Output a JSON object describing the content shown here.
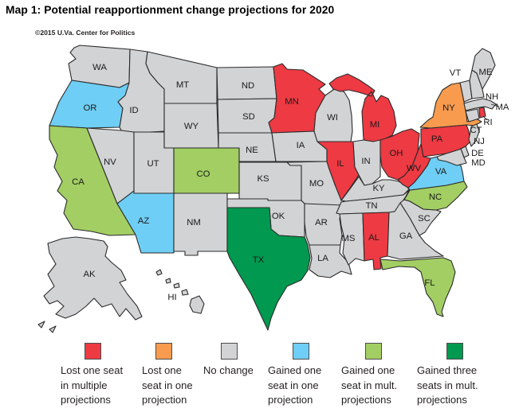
{
  "page": {
    "title": "Map 1: Potential reapportionment change projections for 2020",
    "copyright": "©2015 U.Va. Center for Politics"
  },
  "map": {
    "colors": {
      "lost_multiple": "#EE3A43",
      "lost_one": "#F89B4E",
      "no_change": "#D2D3D5",
      "gained_one_one": "#6FCEF5",
      "gained_one_mult": "#A2CE63",
      "gained_three_mult": "#00994F"
    },
    "border_color": "#2B2B2B",
    "label_color": "#1A1A1A",
    "states": [
      {
        "abbr": "WA",
        "category": "no_change"
      },
      {
        "abbr": "OR",
        "category": "gained_one_one"
      },
      {
        "abbr": "CA",
        "category": "gained_one_mult"
      },
      {
        "abbr": "ID",
        "category": "no_change"
      },
      {
        "abbr": "NV",
        "category": "no_change"
      },
      {
        "abbr": "UT",
        "category": "no_change"
      },
      {
        "abbr": "AZ",
        "category": "gained_one_one"
      },
      {
        "abbr": "MT",
        "category": "no_change"
      },
      {
        "abbr": "WY",
        "category": "no_change"
      },
      {
        "abbr": "CO",
        "category": "gained_one_mult"
      },
      {
        "abbr": "NM",
        "category": "no_change"
      },
      {
        "abbr": "ND",
        "category": "no_change"
      },
      {
        "abbr": "SD",
        "category": "no_change"
      },
      {
        "abbr": "NE",
        "category": "no_change"
      },
      {
        "abbr": "KS",
        "category": "no_change"
      },
      {
        "abbr": "OK",
        "category": "no_change"
      },
      {
        "abbr": "TX",
        "category": "gained_three_mult"
      },
      {
        "abbr": "MN",
        "category": "lost_multiple"
      },
      {
        "abbr": "IA",
        "category": "no_change"
      },
      {
        "abbr": "MO",
        "category": "no_change"
      },
      {
        "abbr": "AR",
        "category": "no_change"
      },
      {
        "abbr": "LA",
        "category": "no_change"
      },
      {
        "abbr": "WI",
        "category": "no_change"
      },
      {
        "abbr": "IL",
        "category": "lost_multiple"
      },
      {
        "abbr": "MI",
        "category": "lost_multiple"
      },
      {
        "abbr": "IN",
        "category": "no_change"
      },
      {
        "abbr": "OH",
        "category": "lost_multiple"
      },
      {
        "abbr": "KY",
        "category": "no_change"
      },
      {
        "abbr": "TN",
        "category": "no_change"
      },
      {
        "abbr": "MS",
        "category": "no_change"
      },
      {
        "abbr": "AL",
        "category": "lost_multiple"
      },
      {
        "abbr": "GA",
        "category": "no_change"
      },
      {
        "abbr": "SC",
        "category": "no_change"
      },
      {
        "abbr": "NC",
        "category": "gained_one_mult"
      },
      {
        "abbr": "FL",
        "category": "gained_one_mult"
      },
      {
        "abbr": "VA",
        "category": "gained_one_one"
      },
      {
        "abbr": "WV",
        "category": "lost_multiple"
      },
      {
        "abbr": "PA",
        "category": "lost_multiple"
      },
      {
        "abbr": "NY",
        "category": "lost_one"
      },
      {
        "abbr": "NJ",
        "category": "no_change"
      },
      {
        "abbr": "DE",
        "category": "no_change"
      },
      {
        "abbr": "MD",
        "category": "no_change"
      },
      {
        "abbr": "CT",
        "category": "no_change"
      },
      {
        "abbr": "RI",
        "category": "lost_multiple"
      },
      {
        "abbr": "MA",
        "category": "no_change"
      },
      {
        "abbr": "VT",
        "category": "no_change"
      },
      {
        "abbr": "NH",
        "category": "no_change"
      },
      {
        "abbr": "ME",
        "category": "no_change"
      },
      {
        "abbr": "AK",
        "category": "no_change"
      },
      {
        "abbr": "HI",
        "category": "no_change"
      }
    ]
  },
  "legend": {
    "items": [
      {
        "category": "lost_multiple",
        "lines": [
          "Lost one seat",
          "in multiple",
          "projections"
        ]
      },
      {
        "category": "lost_one",
        "lines": [
          "Lost one",
          "seat in one",
          "projection"
        ]
      },
      {
        "category": "no_change",
        "lines": [
          "No change"
        ]
      },
      {
        "category": "gained_one_one",
        "lines": [
          "Gained one",
          "seat in one",
          "projection"
        ]
      },
      {
        "category": "gained_one_mult",
        "lines": [
          "Gained one",
          "seat in mult.",
          "projections"
        ]
      },
      {
        "category": "gained_three_mult",
        "lines": [
          "Gained three",
          "seats in mult.",
          "projections"
        ]
      }
    ]
  }
}
